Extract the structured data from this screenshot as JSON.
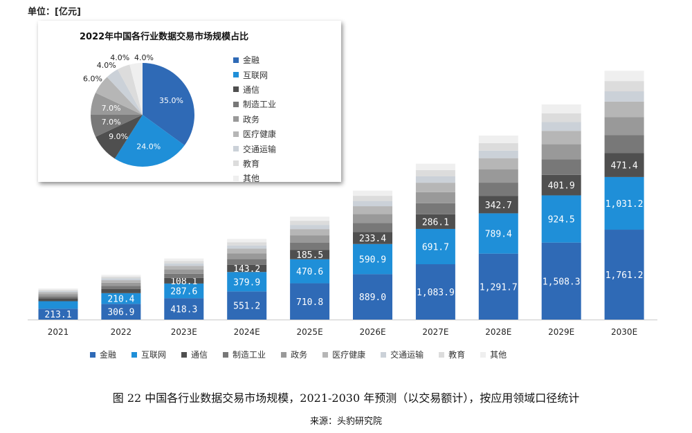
{
  "unit_label": "单位：[亿元]",
  "caption": "图 22 中国各行业数据交易市场规模，2021-2030 年预测（以交易额计），按应用领域口径统计",
  "source": "来源：头豹研究院",
  "chart_data": [
    {
      "type": "bar",
      "stacked": true,
      "categories": [
        "2021",
        "2022",
        "2023E",
        "2024E",
        "2025E",
        "2026E",
        "2027E",
        "2028E",
        "2029E",
        "2030E"
      ],
      "series": [
        {
          "name": "金融",
          "color": "#2f6ab6",
          "values": [
            213.1,
            306.9,
            418.3,
            551.2,
            710.8,
            889.0,
            1083.9,
            1291.7,
            1508.3,
            1761.2
          ],
          "labels": [
            "213.1",
            "306.9",
            "418.3",
            "551.2",
            "710.8",
            "889.0",
            "1,083.9",
            "1,291.7",
            "1,508.3",
            "1,761.2"
          ]
        },
        {
          "name": "互联网",
          "color": "#1f8fd8",
          "values": [
            146.2,
            210.4,
            287.6,
            379.9,
            470.6,
            590.9,
            691.7,
            789.4,
            924.5,
            1031.2
          ],
          "labels": [
            null,
            "210.4",
            "287.6",
            "379.9",
            "470.6",
            "590.9",
            "691.7",
            "789.4",
            "924.5",
            "1,031.2"
          ]
        },
        {
          "name": "通信",
          "color": "#4f4f4f",
          "values": [
            54.8,
            78.9,
            108.1,
            143.2,
            185.5,
            233.4,
            286.1,
            342.7,
            401.9,
            471.4
          ],
          "labels": [
            null,
            null,
            "108.1",
            "143.2",
            "185.5",
            "233.4",
            "286.1",
            "342.7",
            "401.9",
            "471.4"
          ]
        },
        {
          "name": "制造工业",
          "color": "#787878",
          "values": [
            42.6,
            61.4,
            83.7,
            110.2,
            142.2,
            177.8,
            216.8,
            258.3,
            301.7,
            352.2
          ]
        },
        {
          "name": "政务",
          "color": "#999999",
          "values": [
            42.6,
            61.4,
            83.7,
            110.2,
            142.2,
            177.8,
            216.8,
            258.3,
            301.7,
            352.2
          ]
        },
        {
          "name": "医疗健康",
          "color": "#b6b6b6",
          "values": [
            36.5,
            52.6,
            71.7,
            94.5,
            121.9,
            152.4,
            185.8,
            221.4,
            258.6,
            301.9
          ]
        },
        {
          "name": "交通运输",
          "color": "#cbd1d8",
          "values": [
            24.4,
            35.1,
            47.8,
            63.0,
            81.2,
            101.6,
            123.9,
            147.6,
            172.4,
            201.3
          ]
        },
        {
          "name": "教育",
          "color": "#dcdcdc",
          "values": [
            24.4,
            35.1,
            47.8,
            63.0,
            81.2,
            101.6,
            123.9,
            147.6,
            172.4,
            201.3
          ]
        },
        {
          "name": "其他",
          "color": "#efefef",
          "values": [
            24.4,
            35.1,
            47.8,
            63.0,
            81.2,
            101.6,
            123.9,
            147.6,
            172.4,
            201.3
          ]
        }
      ],
      "legend": "bottom",
      "grid": false
    },
    {
      "type": "pie",
      "title": "2022年中国各行业数据交易市场规模占比",
      "categories": [
        "金融",
        "互联网",
        "通信",
        "制造工业",
        "政务",
        "医疗健康",
        "交通运输",
        "教育",
        "其他"
      ],
      "values": [
        35.0,
        24.0,
        9.0,
        7.0,
        7.0,
        6.0,
        4.0,
        4.0,
        4.0
      ],
      "labels": [
        "35.0%",
        "24.0%",
        "9.0%",
        "7.0%",
        "7.0%",
        "6.0%",
        "4.0%",
        "4.0%",
        "4.0%"
      ],
      "colors": [
        "#2f6ab6",
        "#1f8fd8",
        "#4f4f4f",
        "#787878",
        "#999999",
        "#b6b6b6",
        "#cbd1d8",
        "#dcdcdc",
        "#efefef"
      ],
      "legend": "right"
    }
  ]
}
